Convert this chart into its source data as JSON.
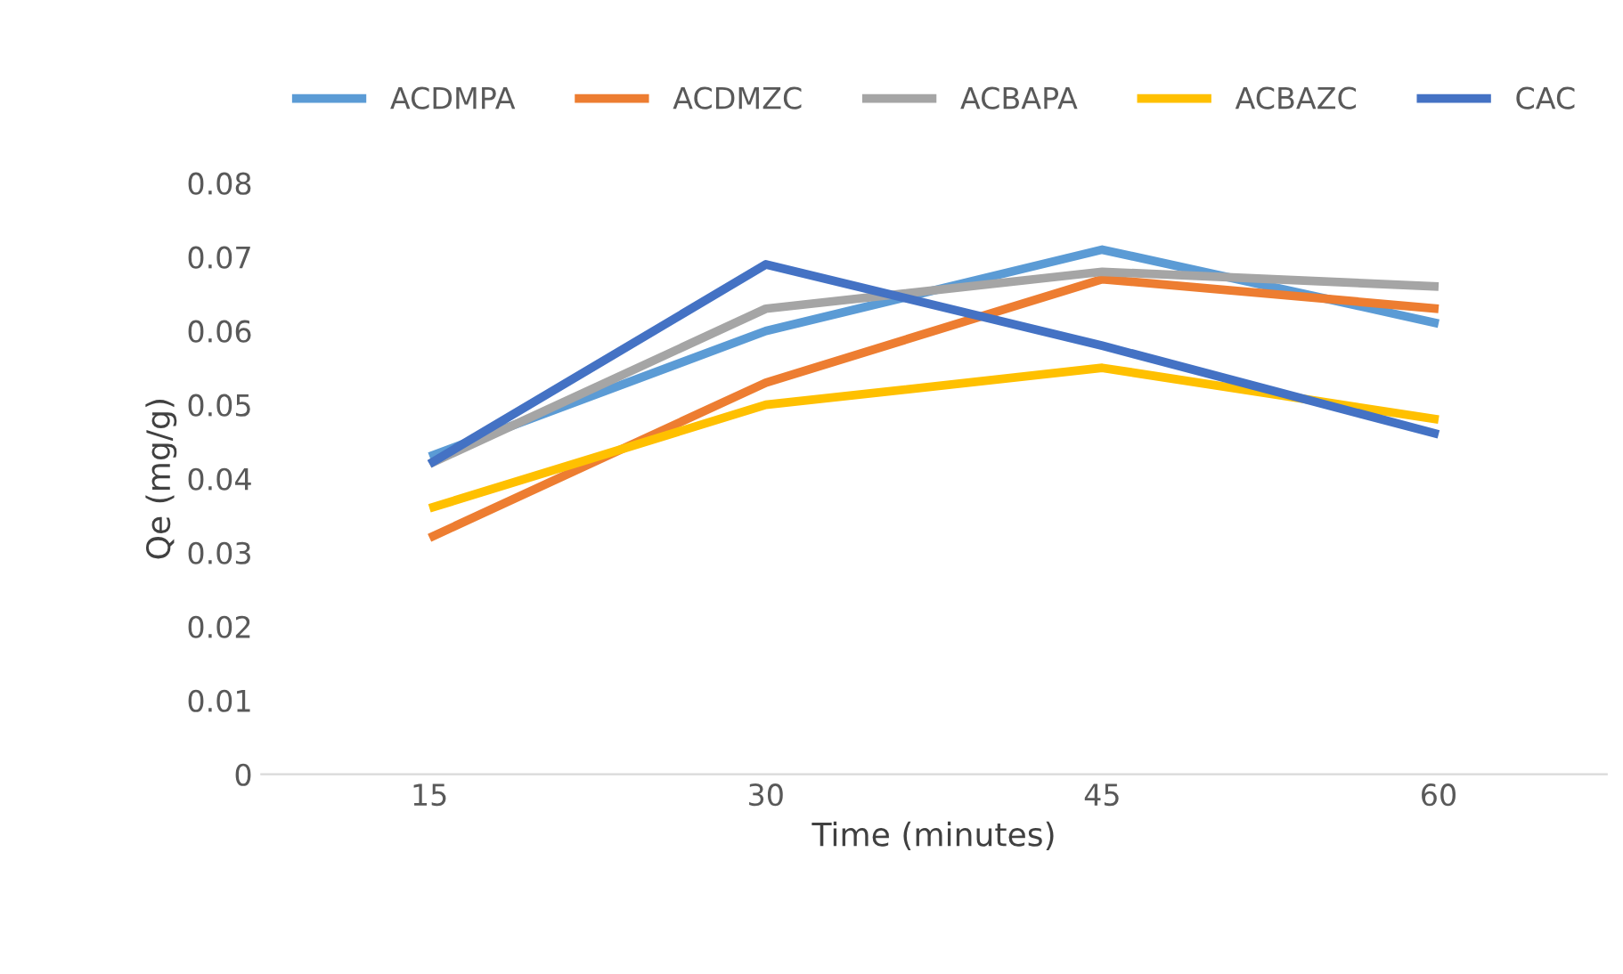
{
  "chart_data": {
    "type": "line",
    "xlabel": "Time (minutes)",
    "ylabel": "Qe (mg/g)",
    "categories": [
      "15",
      "30",
      "45",
      "60"
    ],
    "series": [
      {
        "name": "ACDMPA",
        "color": "#5b9bd5",
        "values": [
          0.043,
          0.06,
          0.071,
          0.061
        ]
      },
      {
        "name": "ACDMZC",
        "color": "#ed7d31",
        "values": [
          0.032,
          0.053,
          0.067,
          0.063
        ]
      },
      {
        "name": "ACBAPA",
        "color": "#a5a5a5",
        "values": [
          0.042,
          0.063,
          0.068,
          0.066
        ]
      },
      {
        "name": "ACBAZC",
        "color": "#ffc000",
        "values": [
          0.036,
          0.05,
          0.055,
          0.048
        ]
      },
      {
        "name": "CAC",
        "color": "#4472c4",
        "values": [
          0.042,
          0.069,
          0.058,
          0.046
        ]
      }
    ],
    "ylim": [
      0,
      0.08
    ],
    "yticks": [
      0,
      0.01,
      0.02,
      0.03,
      0.04,
      0.05,
      0.06,
      0.07,
      0.08
    ],
    "grid": false,
    "legend": "top",
    "marker": "none",
    "line_style": "solid"
  }
}
